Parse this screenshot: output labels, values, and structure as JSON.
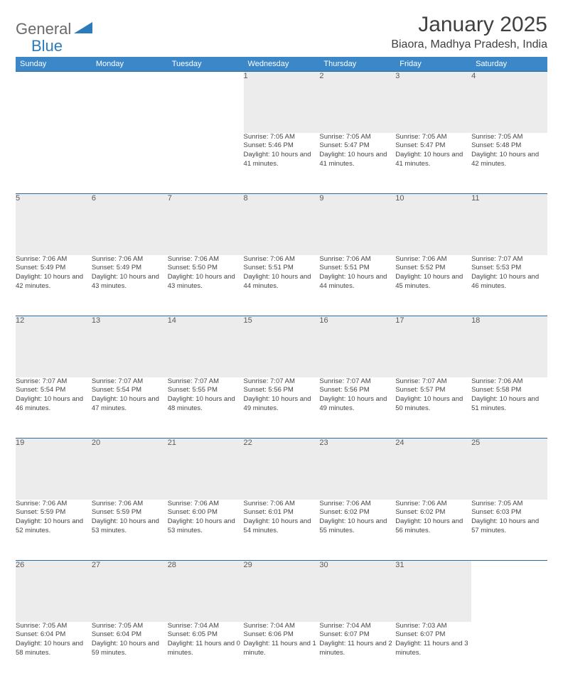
{
  "logo": {
    "general": "General",
    "blue": "Blue"
  },
  "title": "January 2025",
  "location": "Biaora, Madhya Pradesh, India",
  "colors": {
    "header_bg": "#3b87c8",
    "header_border": "#2b6aa3",
    "daynum_bg": "#ececec",
    "text": "#404040",
    "logo_blue": "#2b7bbd",
    "logo_gray": "#6a6a6a"
  },
  "weekdays": [
    "Sunday",
    "Monday",
    "Tuesday",
    "Wednesday",
    "Thursday",
    "Friday",
    "Saturday"
  ],
  "weeks": [
    [
      null,
      null,
      null,
      {
        "n": "1",
        "sr": "7:05 AM",
        "ss": "5:46 PM",
        "dl": "10 hours and 41 minutes."
      },
      {
        "n": "2",
        "sr": "7:05 AM",
        "ss": "5:47 PM",
        "dl": "10 hours and 41 minutes."
      },
      {
        "n": "3",
        "sr": "7:05 AM",
        "ss": "5:47 PM",
        "dl": "10 hours and 41 minutes."
      },
      {
        "n": "4",
        "sr": "7:05 AM",
        "ss": "5:48 PM",
        "dl": "10 hours and 42 minutes."
      }
    ],
    [
      {
        "n": "5",
        "sr": "7:06 AM",
        "ss": "5:49 PM",
        "dl": "10 hours and 42 minutes."
      },
      {
        "n": "6",
        "sr": "7:06 AM",
        "ss": "5:49 PM",
        "dl": "10 hours and 43 minutes."
      },
      {
        "n": "7",
        "sr": "7:06 AM",
        "ss": "5:50 PM",
        "dl": "10 hours and 43 minutes."
      },
      {
        "n": "8",
        "sr": "7:06 AM",
        "ss": "5:51 PM",
        "dl": "10 hours and 44 minutes."
      },
      {
        "n": "9",
        "sr": "7:06 AM",
        "ss": "5:51 PM",
        "dl": "10 hours and 44 minutes."
      },
      {
        "n": "10",
        "sr": "7:06 AM",
        "ss": "5:52 PM",
        "dl": "10 hours and 45 minutes."
      },
      {
        "n": "11",
        "sr": "7:07 AM",
        "ss": "5:53 PM",
        "dl": "10 hours and 46 minutes."
      }
    ],
    [
      {
        "n": "12",
        "sr": "7:07 AM",
        "ss": "5:54 PM",
        "dl": "10 hours and 46 minutes."
      },
      {
        "n": "13",
        "sr": "7:07 AM",
        "ss": "5:54 PM",
        "dl": "10 hours and 47 minutes."
      },
      {
        "n": "14",
        "sr": "7:07 AM",
        "ss": "5:55 PM",
        "dl": "10 hours and 48 minutes."
      },
      {
        "n": "15",
        "sr": "7:07 AM",
        "ss": "5:56 PM",
        "dl": "10 hours and 49 minutes."
      },
      {
        "n": "16",
        "sr": "7:07 AM",
        "ss": "5:56 PM",
        "dl": "10 hours and 49 minutes."
      },
      {
        "n": "17",
        "sr": "7:07 AM",
        "ss": "5:57 PM",
        "dl": "10 hours and 50 minutes."
      },
      {
        "n": "18",
        "sr": "7:06 AM",
        "ss": "5:58 PM",
        "dl": "10 hours and 51 minutes."
      }
    ],
    [
      {
        "n": "19",
        "sr": "7:06 AM",
        "ss": "5:59 PM",
        "dl": "10 hours and 52 minutes."
      },
      {
        "n": "20",
        "sr": "7:06 AM",
        "ss": "5:59 PM",
        "dl": "10 hours and 53 minutes."
      },
      {
        "n": "21",
        "sr": "7:06 AM",
        "ss": "6:00 PM",
        "dl": "10 hours and 53 minutes."
      },
      {
        "n": "22",
        "sr": "7:06 AM",
        "ss": "6:01 PM",
        "dl": "10 hours and 54 minutes."
      },
      {
        "n": "23",
        "sr": "7:06 AM",
        "ss": "6:02 PM",
        "dl": "10 hours and 55 minutes."
      },
      {
        "n": "24",
        "sr": "7:06 AM",
        "ss": "6:02 PM",
        "dl": "10 hours and 56 minutes."
      },
      {
        "n": "25",
        "sr": "7:05 AM",
        "ss": "6:03 PM",
        "dl": "10 hours and 57 minutes."
      }
    ],
    [
      {
        "n": "26",
        "sr": "7:05 AM",
        "ss": "6:04 PM",
        "dl": "10 hours and 58 minutes."
      },
      {
        "n": "27",
        "sr": "7:05 AM",
        "ss": "6:04 PM",
        "dl": "10 hours and 59 minutes."
      },
      {
        "n": "28",
        "sr": "7:04 AM",
        "ss": "6:05 PM",
        "dl": "11 hours and 0 minutes."
      },
      {
        "n": "29",
        "sr": "7:04 AM",
        "ss": "6:06 PM",
        "dl": "11 hours and 1 minute."
      },
      {
        "n": "30",
        "sr": "7:04 AM",
        "ss": "6:07 PM",
        "dl": "11 hours and 2 minutes."
      },
      {
        "n": "31",
        "sr": "7:03 AM",
        "ss": "6:07 PM",
        "dl": "11 hours and 3 minutes."
      },
      null
    ]
  ],
  "labels": {
    "sunrise": "Sunrise:",
    "sunset": "Sunset:",
    "daylight": "Daylight:"
  }
}
